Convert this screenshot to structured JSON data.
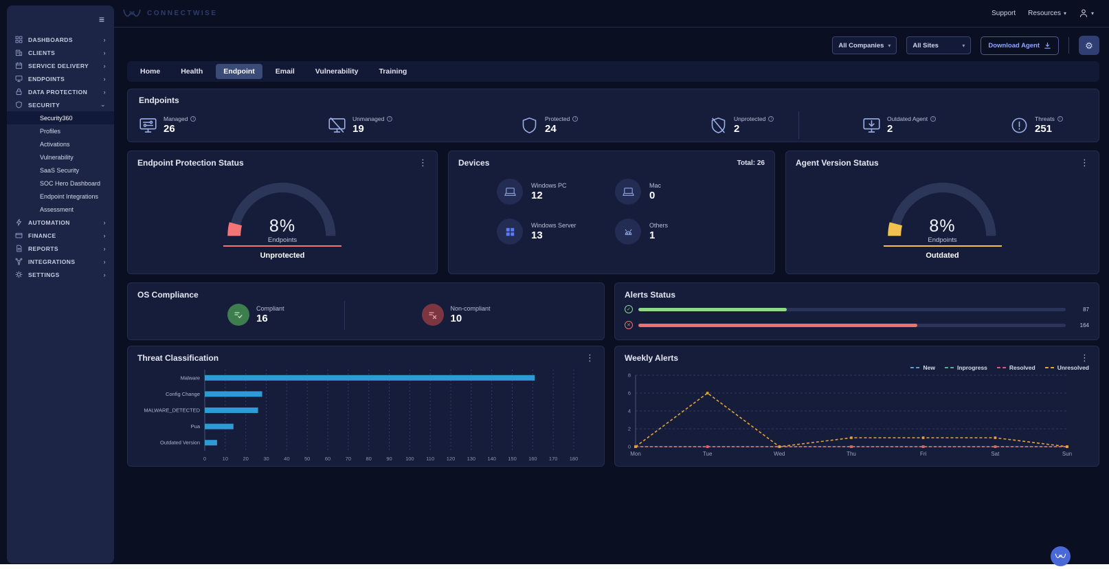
{
  "header": {
    "logo_text": "CONNECTWISE",
    "support": "Support",
    "resources": "Resources"
  },
  "sidebar": {
    "items": [
      {
        "label": "DASHBOARDS",
        "icon": "grid"
      },
      {
        "label": "CLIENTS",
        "icon": "clients"
      },
      {
        "label": "SERVICE DELIVERY",
        "icon": "service"
      },
      {
        "label": "ENDPOINTS",
        "icon": "endpoints"
      },
      {
        "label": "DATA PROTECTION",
        "icon": "dataprot"
      },
      {
        "label": "SECURITY",
        "icon": "security",
        "expanded": true
      },
      {
        "label": "AUTOMATION",
        "icon": "automation"
      },
      {
        "label": "FINANCE",
        "icon": "finance"
      },
      {
        "label": "REPORTS",
        "icon": "reports"
      },
      {
        "label": "INTEGRATIONS",
        "icon": "integrations"
      },
      {
        "label": "SETTINGS",
        "icon": "settings"
      }
    ],
    "security_submenu": [
      "Security360",
      "Profiles",
      "Activations",
      "Vulnerability",
      "SaaS Security",
      "SOC Hero Dashboard",
      "Endpoint Integrations",
      "Assessment"
    ],
    "active_submenu_item": "Security360"
  },
  "toolbar": {
    "company_filter": "All Companies",
    "site_filter": "All Sites",
    "download_agent_label": "Download Agent"
  },
  "tabs": {
    "items": [
      "Home",
      "Health",
      "Endpoint",
      "Email",
      "Vulnerability",
      "Training"
    ],
    "active": "Endpoint"
  },
  "endpoints_summary": {
    "title": "Endpoints",
    "stats": [
      {
        "label": "Managed",
        "value": "26",
        "icon": "monitor-managed"
      },
      {
        "label": "Unmanaged",
        "value": "19",
        "icon": "monitor-slash"
      },
      {
        "label": "Protected",
        "value": "24",
        "icon": "shield"
      },
      {
        "label": "Unprotected",
        "value": "2",
        "icon": "shield-slash"
      },
      {
        "label": "Outdated Agent",
        "value": "2",
        "icon": "monitor-download"
      },
      {
        "label": "Threats",
        "value": "251",
        "icon": "alert-circle"
      }
    ]
  },
  "protection_card": {
    "title": "Endpoint Protection Status",
    "percent": 8,
    "percent_label": "8%",
    "center_label": "Endpoints",
    "status_label": "Unprotected",
    "accent": "#f47575"
  },
  "devices_card": {
    "title": "Devices",
    "total_label": "Total: 26",
    "items": [
      {
        "label": "Windows PC",
        "value": "12",
        "icon": "laptop"
      },
      {
        "label": "Mac",
        "value": "0",
        "icon": "laptop"
      },
      {
        "label": "Windows Server",
        "value": "13",
        "icon": "windows"
      },
      {
        "label": "Others",
        "value": "1",
        "icon": "robot"
      }
    ]
  },
  "agent_card": {
    "title": "Agent Version Status",
    "percent": 8,
    "percent_label": "8%",
    "center_label": "Endpoints",
    "status_label": "Outdated",
    "accent": "#f2c14e"
  },
  "os_compliance": {
    "title": "OS Compliance",
    "items": [
      {
        "label": "Compliant",
        "value": "16",
        "circle_bg": "#3e7d4e",
        "glyph_color": "#bfe9bb",
        "glyph": "check"
      },
      {
        "label": "Non-compliant",
        "value": "10",
        "circle_bg": "#7c3642",
        "glyph_color": "#f0a0a8",
        "glyph": "cross"
      }
    ]
  },
  "alerts_status": {
    "title": "Alerts Status",
    "bars": [
      {
        "kind": "resolved-check",
        "value": 87,
        "max": 251,
        "color": "#8fd98a",
        "label": "87"
      },
      {
        "kind": "unresolved-cross",
        "value": 164,
        "max": 251,
        "color": "#f07070",
        "label": "164"
      }
    ]
  },
  "chart_data": [
    {
      "type": "bar",
      "orientation": "horizontal",
      "title": "Threat Classification",
      "categories": [
        "Malware",
        "Config Change",
        "MALWARE_DETECTED",
        "Pua",
        "Outdated Version"
      ],
      "values": [
        161,
        28,
        26,
        14,
        6
      ],
      "xlabel": "",
      "ylabel": "",
      "xlim": [
        0,
        180
      ],
      "xticks": [
        0,
        10,
        20,
        30,
        40,
        50,
        60,
        70,
        80,
        90,
        100,
        110,
        120,
        130,
        140,
        150,
        160,
        170,
        180
      ],
      "grid": "dashed-vertical",
      "bar_color": "#2e9bd6"
    },
    {
      "type": "line",
      "title": "Weekly Alerts",
      "x": [
        "Mon",
        "Tue",
        "Wed",
        "Thu",
        "Fri",
        "Sat",
        "Sun"
      ],
      "series": [
        {
          "name": "New",
          "color": "#57a0e5",
          "values": [
            0,
            0,
            0,
            0,
            0,
            0,
            0
          ]
        },
        {
          "name": "Inprogress",
          "color": "#4cba7f",
          "values": [
            0,
            0,
            0,
            0,
            0,
            0,
            0
          ]
        },
        {
          "name": "Resolved",
          "color": "#e06060",
          "values": [
            0,
            0,
            0,
            0,
            0,
            0,
            0
          ]
        },
        {
          "name": "Unresolved",
          "color": "#e8a33d",
          "values": [
            0,
            6,
            0,
            1,
            1,
            1,
            0
          ]
        }
      ],
      "ylim": [
        0,
        8
      ],
      "yticks": [
        0,
        2,
        4,
        6,
        8
      ],
      "grid": "dashed-horizontal",
      "legend_position": "top-right"
    }
  ]
}
